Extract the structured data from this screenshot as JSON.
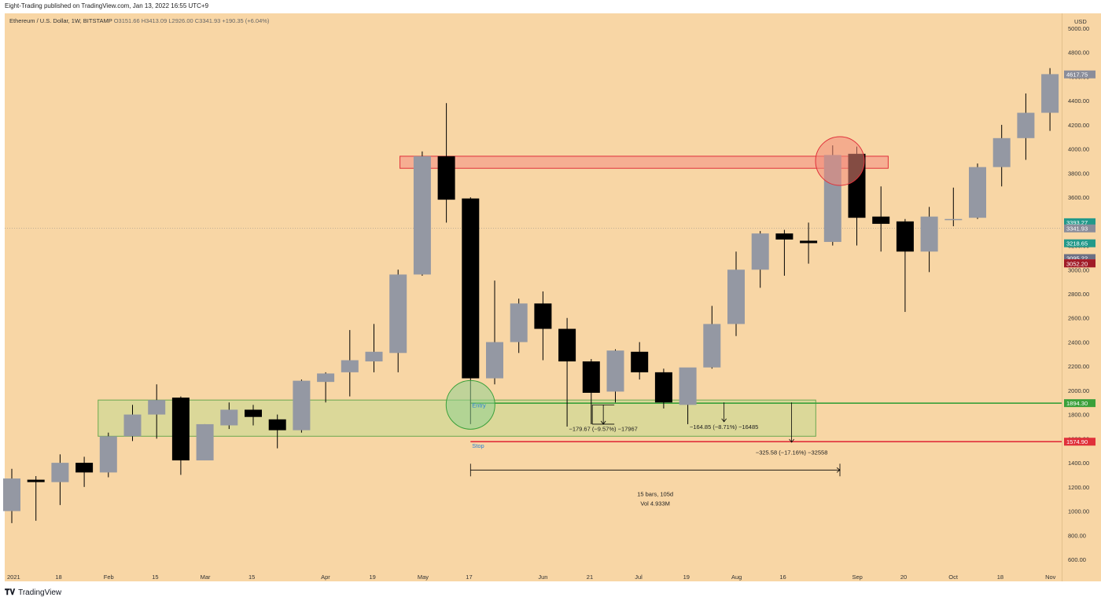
{
  "header": {
    "published_by": "Eight-Trading published on TradingView.com, Jan 13, 2022 16:55 UTC+9"
  },
  "symbol": {
    "name": "Ethereum / U.S. Dollar, 1W, BITSTAMP",
    "open": "O3151.66",
    "high": "H3413.09",
    "low": "L2926.00",
    "close": "C3341.93",
    "change": "+190.35 (+6.04%)"
  },
  "footer": {
    "brand": "TradingView",
    "logo": "tradingview-logo-icon"
  },
  "chart_data": {
    "type": "candlestick",
    "ylabel": "USD",
    "ylim": [
      550,
      5050
    ],
    "y_ticks": [
      600,
      800,
      1000,
      1200,
      1400,
      1600,
      1800,
      2000,
      2200,
      2400,
      2600,
      2800,
      3000,
      3200,
      3400,
      3600,
      3800,
      4000,
      4200,
      4400,
      4600,
      4800,
      5000
    ],
    "y_tick_labels": [
      "600.00",
      "800.00",
      "1000.00",
      "1200.00",
      "1400.00",
      "1600.00",
      "1800.00",
      "2000.00",
      "2200.00",
      "2400.00",
      "2600.00",
      "2800.00",
      "3000.00",
      "3200.00",
      "3400.00",
      "3600.00",
      "3800.00",
      "4000.00",
      "4200.00",
      "4400.00",
      "4600.00",
      "4800.00",
      "5000.00"
    ],
    "time_labels": [
      {
        "label": "2021",
        "bar": 0
      },
      {
        "label": "18",
        "bar": 2
      },
      {
        "label": "Feb",
        "bar": 4
      },
      {
        "label": "15",
        "bar": 6
      },
      {
        "label": "Mar",
        "bar": 8
      },
      {
        "label": "15",
        "bar": 10
      },
      {
        "label": "Apr",
        "bar": 13
      },
      {
        "label": "19",
        "bar": 15
      },
      {
        "label": "May",
        "bar": 17
      },
      {
        "label": "17",
        "bar": 19
      },
      {
        "label": "Jun",
        "bar": 22
      },
      {
        "label": "21",
        "bar": 24
      },
      {
        "label": "Jul",
        "bar": 26
      },
      {
        "label": "19",
        "bar": 28
      },
      {
        "label": "Aug",
        "bar": 30
      },
      {
        "label": "16",
        "bar": 32
      },
      {
        "label": "Sep",
        "bar": 35
      },
      {
        "label": "20",
        "bar": 37
      },
      {
        "label": "Oct",
        "bar": 39
      },
      {
        "label": "18",
        "bar": 41
      },
      {
        "label": "Nov",
        "bar": 43
      }
    ],
    "candles": [
      {
        "o": 1000,
        "h": 1350,
        "l": 900,
        "c": 1270
      },
      {
        "o": 1260,
        "h": 1290,
        "l": 920,
        "c": 1240
      },
      {
        "o": 1240,
        "h": 1470,
        "l": 1050,
        "c": 1400
      },
      {
        "o": 1400,
        "h": 1450,
        "l": 1200,
        "c": 1320
      },
      {
        "o": 1320,
        "h": 1650,
        "l": 1280,
        "c": 1620
      },
      {
        "o": 1620,
        "h": 1880,
        "l": 1580,
        "c": 1800
      },
      {
        "o": 1800,
        "h": 2050,
        "l": 1600,
        "c": 1920
      },
      {
        "o": 1940,
        "h": 1950,
        "l": 1300,
        "c": 1420
      },
      {
        "o": 1420,
        "h": 1720,
        "l": 1420,
        "c": 1720
      },
      {
        "o": 1710,
        "h": 1900,
        "l": 1680,
        "c": 1840
      },
      {
        "o": 1840,
        "h": 1880,
        "l": 1710,
        "c": 1780
      },
      {
        "o": 1760,
        "h": 1800,
        "l": 1520,
        "c": 1670
      },
      {
        "o": 1670,
        "h": 2090,
        "l": 1650,
        "c": 2080
      },
      {
        "o": 2070,
        "h": 2150,
        "l": 1900,
        "c": 2140
      },
      {
        "o": 2150,
        "h": 2500,
        "l": 1950,
        "c": 2250
      },
      {
        "o": 2240,
        "h": 2550,
        "l": 2150,
        "c": 2320
      },
      {
        "o": 2310,
        "h": 3000,
        "l": 2150,
        "c": 2960
      },
      {
        "o": 2960,
        "h": 3980,
        "l": 2950,
        "c": 3940
      },
      {
        "o": 3940,
        "h": 4380,
        "l": 3390,
        "c": 3580
      },
      {
        "o": 3590,
        "h": 3600,
        "l": 1720,
        "c": 2100
      },
      {
        "o": 2100,
        "h": 2910,
        "l": 2050,
        "c": 2400
      },
      {
        "o": 2400,
        "h": 2760,
        "l": 2310,
        "c": 2720
      },
      {
        "o": 2720,
        "h": 2820,
        "l": 2250,
        "c": 2510
      },
      {
        "o": 2510,
        "h": 2600,
        "l": 1700,
        "c": 2240
      },
      {
        "o": 2240,
        "h": 2260,
        "l": 1720,
        "c": 1980
      },
      {
        "o": 1990,
        "h": 2340,
        "l": 1900,
        "c": 2330
      },
      {
        "o": 2320,
        "h": 2400,
        "l": 2090,
        "c": 2150
      },
      {
        "o": 2150,
        "h": 2180,
        "l": 1850,
        "c": 1900
      },
      {
        "o": 1880,
        "h": 2180,
        "l": 1720,
        "c": 2190
      },
      {
        "o": 2190,
        "h": 2700,
        "l": 2180,
        "c": 2550
      },
      {
        "o": 2550,
        "h": 3150,
        "l": 2450,
        "c": 3000
      },
      {
        "o": 3000,
        "h": 3320,
        "l": 2850,
        "c": 3300
      },
      {
        "o": 3300,
        "h": 3330,
        "l": 2950,
        "c": 3250
      },
      {
        "o": 3240,
        "h": 3390,
        "l": 3050,
        "c": 3220
      },
      {
        "o": 3230,
        "h": 4030,
        "l": 3200,
        "c": 3950
      },
      {
        "o": 3960,
        "h": 4020,
        "l": 3200,
        "c": 3430
      },
      {
        "o": 3440,
        "h": 3690,
        "l": 3150,
        "c": 3380
      },
      {
        "o": 3400,
        "h": 3420,
        "l": 2650,
        "c": 3150
      },
      {
        "o": 3150,
        "h": 3520,
        "l": 2980,
        "c": 3440
      },
      {
        "o": 3420,
        "h": 3680,
        "l": 3360,
        "c": 3420
      },
      {
        "o": 3430,
        "h": 3880,
        "l": 3420,
        "c": 3850
      },
      {
        "o": 3850,
        "h": 4200,
        "l": 3690,
        "c": 4090
      },
      {
        "o": 4090,
        "h": 4460,
        "l": 3910,
        "c": 4300
      },
      {
        "o": 4300,
        "h": 4670,
        "l": 4150,
        "c": 4620
      }
    ],
    "zones": [
      {
        "name": "resistance-zone",
        "y0": 3840,
        "y1": 3940,
        "bar0": 16.5,
        "bar1": 36.3,
        "color": "#f5a08c"
      },
      {
        "name": "support-zone",
        "y0": 1620,
        "y1": 1920,
        "bar0": 4.0,
        "bar1": 33.3,
        "color": "#d2d896"
      }
    ],
    "lines": [
      {
        "name": "entry-line",
        "y": 1894.3,
        "bar0": 19,
        "color": "#3aa03a"
      },
      {
        "name": "stop-line",
        "y": 1574.9,
        "bar0": 19,
        "color": "#e0303a"
      }
    ],
    "circles": [
      {
        "name": "entry-circle",
        "bar": 19,
        "y": 1880,
        "color": "#8fd28f"
      },
      {
        "name": "top-circle",
        "bar": 34.3,
        "y": 3900,
        "color": "#f08a7a"
      }
    ],
    "entry_label": "Entry",
    "stop_label": "Stop",
    "measures": [
      {
        "name": "measure-1",
        "text": "−179.67 (−9.57%) −17967",
        "bar": 24.5,
        "y0": 1880,
        "y1": 1720
      },
      {
        "name": "measure-2",
        "text": "−164.85 (−8.71%) −16485",
        "bar": 29.5,
        "y0": 1900,
        "y1": 1740
      },
      {
        "name": "measure-3",
        "text": "−325.58 (−17.16%) −32558",
        "bar": 32.3,
        "y0": 1900,
        "y1": 1570
      }
    ],
    "range_measure": {
      "bars_text": "15 bars, 105d",
      "vol_text": "Vol 4.933M",
      "bar0": 19,
      "bar1": 34.3,
      "y": 1340
    },
    "price_tags": [
      {
        "text": "4617.75",
        "y": 4617.75,
        "color": "#8a8d9a"
      },
      {
        "text": "3393.27",
        "y": 3393.27,
        "color": "#22998a"
      },
      {
        "text": "3341.93",
        "y": 3341.93,
        "color": "#8a8d9a"
      },
      {
        "text": "3218.65",
        "y": 3218.65,
        "color": "#22998a"
      },
      {
        "text": "3096.16",
        "y": 3096.16,
        "color": "#3aa03a"
      },
      {
        "text": "3095.74",
        "y": 3095.74,
        "color": "#6b6f84"
      },
      {
        "text": "3095.22",
        "y": 3095.22,
        "color": "#6b6f84"
      },
      {
        "text": "3053.44",
        "y": 3053.44,
        "color": "#e0303a"
      },
      {
        "text": "3052.68",
        "y": 3052.68,
        "color": "#e0303a"
      },
      {
        "text": "3052.20",
        "y": 3052.2,
        "color": "#a01c28"
      },
      {
        "text": "1894.30",
        "y": 1894.3,
        "color": "#3aa03a"
      },
      {
        "text": "1574.90",
        "y": 1574.9,
        "color": "#e0303a"
      }
    ],
    "current_price": 3341.93,
    "colors": {
      "up": "#9498a3",
      "down": "#000000",
      "background": "#f8d6a5"
    }
  }
}
